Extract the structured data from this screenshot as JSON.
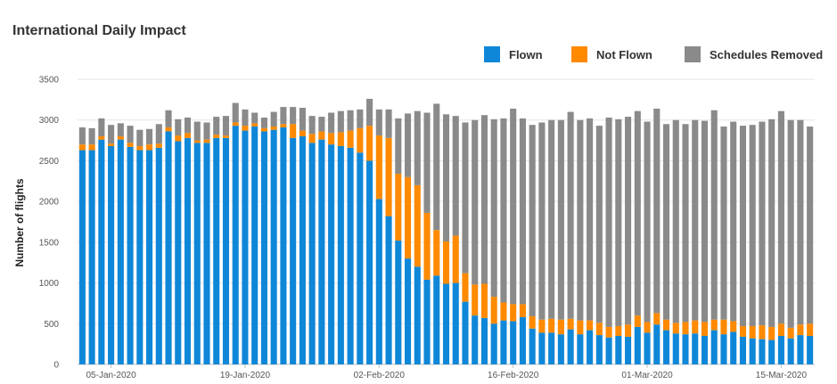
{
  "chart_data": {
    "type": "bar",
    "stacked": true,
    "title": "International Daily Impact",
    "xlabel": "",
    "ylabel": "Number of flights",
    "ylim": [
      0,
      3500
    ],
    "yticks": [
      0,
      500,
      1000,
      1500,
      2000,
      2500,
      3000,
      3500
    ],
    "grid": true,
    "legend_position": "top-right",
    "x_tick_labels": [
      {
        "index": 3,
        "label": "05-Jan-2020"
      },
      {
        "index": 17,
        "label": "19-Jan-2020"
      },
      {
        "index": 31,
        "label": "02-Feb-2020"
      },
      {
        "index": 45,
        "label": "16-Feb-2020"
      },
      {
        "index": 59,
        "label": "01-Mar-2020"
      },
      {
        "index": 73,
        "label": "15-Mar-2020"
      }
    ],
    "series": [
      {
        "name": "Flown",
        "color": "#0f87d8",
        "values": [
          2630,
          2630,
          2760,
          2680,
          2760,
          2670,
          2630,
          2630,
          2660,
          2860,
          2740,
          2780,
          2720,
          2720,
          2780,
          2780,
          2930,
          2870,
          2920,
          2860,
          2880,
          2910,
          2780,
          2800,
          2720,
          2760,
          2700,
          2680,
          2660,
          2600,
          2500,
          2030,
          1820,
          1520,
          1300,
          1200,
          1040,
          1090,
          990,
          1000,
          770,
          600,
          570,
          500,
          540,
          530,
          580,
          440,
          390,
          390,
          370,
          430,
          370,
          420,
          360,
          330,
          350,
          340,
          460,
          390,
          490,
          420,
          380,
          370,
          380,
          350,
          420,
          370,
          400,
          340,
          320,
          310,
          300,
          350,
          320,
          360,
          350
        ]
      },
      {
        "name": "Not Flown",
        "color": "#ff8a00",
        "values": [
          70,
          70,
          40,
          30,
          40,
          50,
          50,
          70,
          50,
          50,
          70,
          60,
          30,
          40,
          40,
          30,
          40,
          60,
          40,
          40,
          40,
          40,
          170,
          70,
          110,
          100,
          140,
          170,
          210,
          300,
          430,
          780,
          960,
          820,
          1000,
          1000,
          820,
          560,
          520,
          580,
          350,
          380,
          420,
          330,
          220,
          210,
          160,
          150,
          160,
          170,
          180,
          130,
          170,
          120,
          150,
          130,
          120,
          150,
          140,
          130,
          140,
          130,
          130,
          150,
          160,
          170,
          130,
          180,
          130,
          130,
          150,
          170,
          160,
          150,
          130,
          130,
          150
        ]
      },
      {
        "name": "Schedules Removed",
        "color": "#8a8a8a",
        "values": [
          210,
          200,
          220,
          230,
          160,
          210,
          200,
          190,
          240,
          210,
          200,
          190,
          230,
          210,
          220,
          240,
          240,
          200,
          130,
          130,
          180,
          210,
          210,
          280,
          220,
          180,
          250,
          260,
          250,
          230,
          330,
          320,
          350,
          680,
          780,
          910,
          1230,
          1550,
          1560,
          1470,
          1850,
          2020,
          2070,
          2180,
          2260,
          2400,
          2280,
          2350,
          2420,
          2440,
          2450,
          2540,
          2460,
          2480,
          2420,
          2570,
          2540,
          2550,
          2510,
          2460,
          2510,
          2400,
          2490,
          2430,
          2460,
          2470,
          2570,
          2370,
          2450,
          2460,
          2470,
          2500,
          2550,
          2610,
          2550,
          2510,
          2420
        ]
      }
    ]
  }
}
